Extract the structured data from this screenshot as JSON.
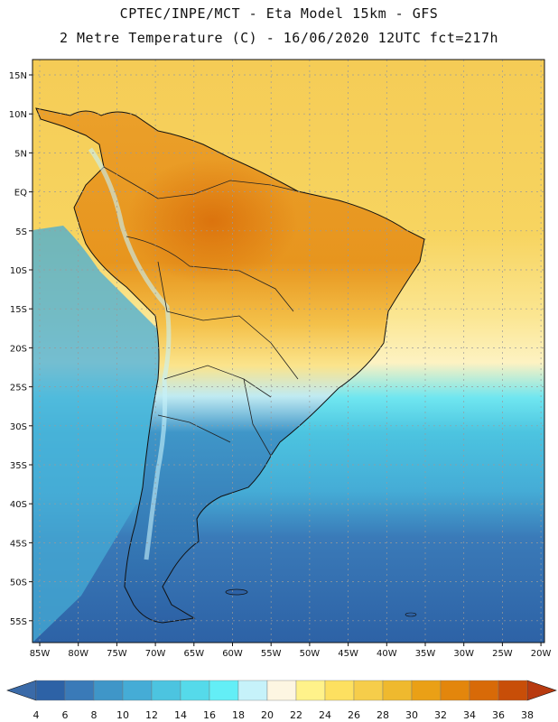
{
  "title": {
    "line1": "CPTEC/INPE/MCT -  Eta Model 15km - GFS",
    "line2": "2 Metre Temperature (C) - 16/06/2020 12UTC fct=217h"
  },
  "map": {
    "lat_labels": [
      "15N",
      "10N",
      "5N",
      "EQ",
      "5S",
      "10S",
      "15S",
      "20S",
      "25S",
      "30S",
      "35S",
      "40S",
      "45S",
      "50S",
      "55S"
    ],
    "lon_labels": [
      "85W",
      "80W",
      "75W",
      "70W",
      "65W",
      "60W",
      "55W",
      "50W",
      "45W",
      "40W",
      "35W",
      "30W",
      "25W",
      "20W"
    ]
  },
  "colorbar": {
    "labels": [
      "4",
      "6",
      "8",
      "10",
      "12",
      "14",
      "16",
      "18",
      "20",
      "22",
      "24",
      "26",
      "28",
      "30",
      "32",
      "34",
      "36",
      "38"
    ],
    "low_color": "#3a6aa8",
    "high_color": "#b83a10",
    "colors": [
      "#2d62a6",
      "#3a7ab8",
      "#3f96c8",
      "#45acd6",
      "#4cc4e0",
      "#55daea",
      "#63eef6",
      "#c6f2fa",
      "#fdf6e2",
      "#fff28a",
      "#fde060",
      "#f6cd4a",
      "#efb92e",
      "#eaa016",
      "#e3860c",
      "#d86a08",
      "#c84e08"
    ]
  }
}
